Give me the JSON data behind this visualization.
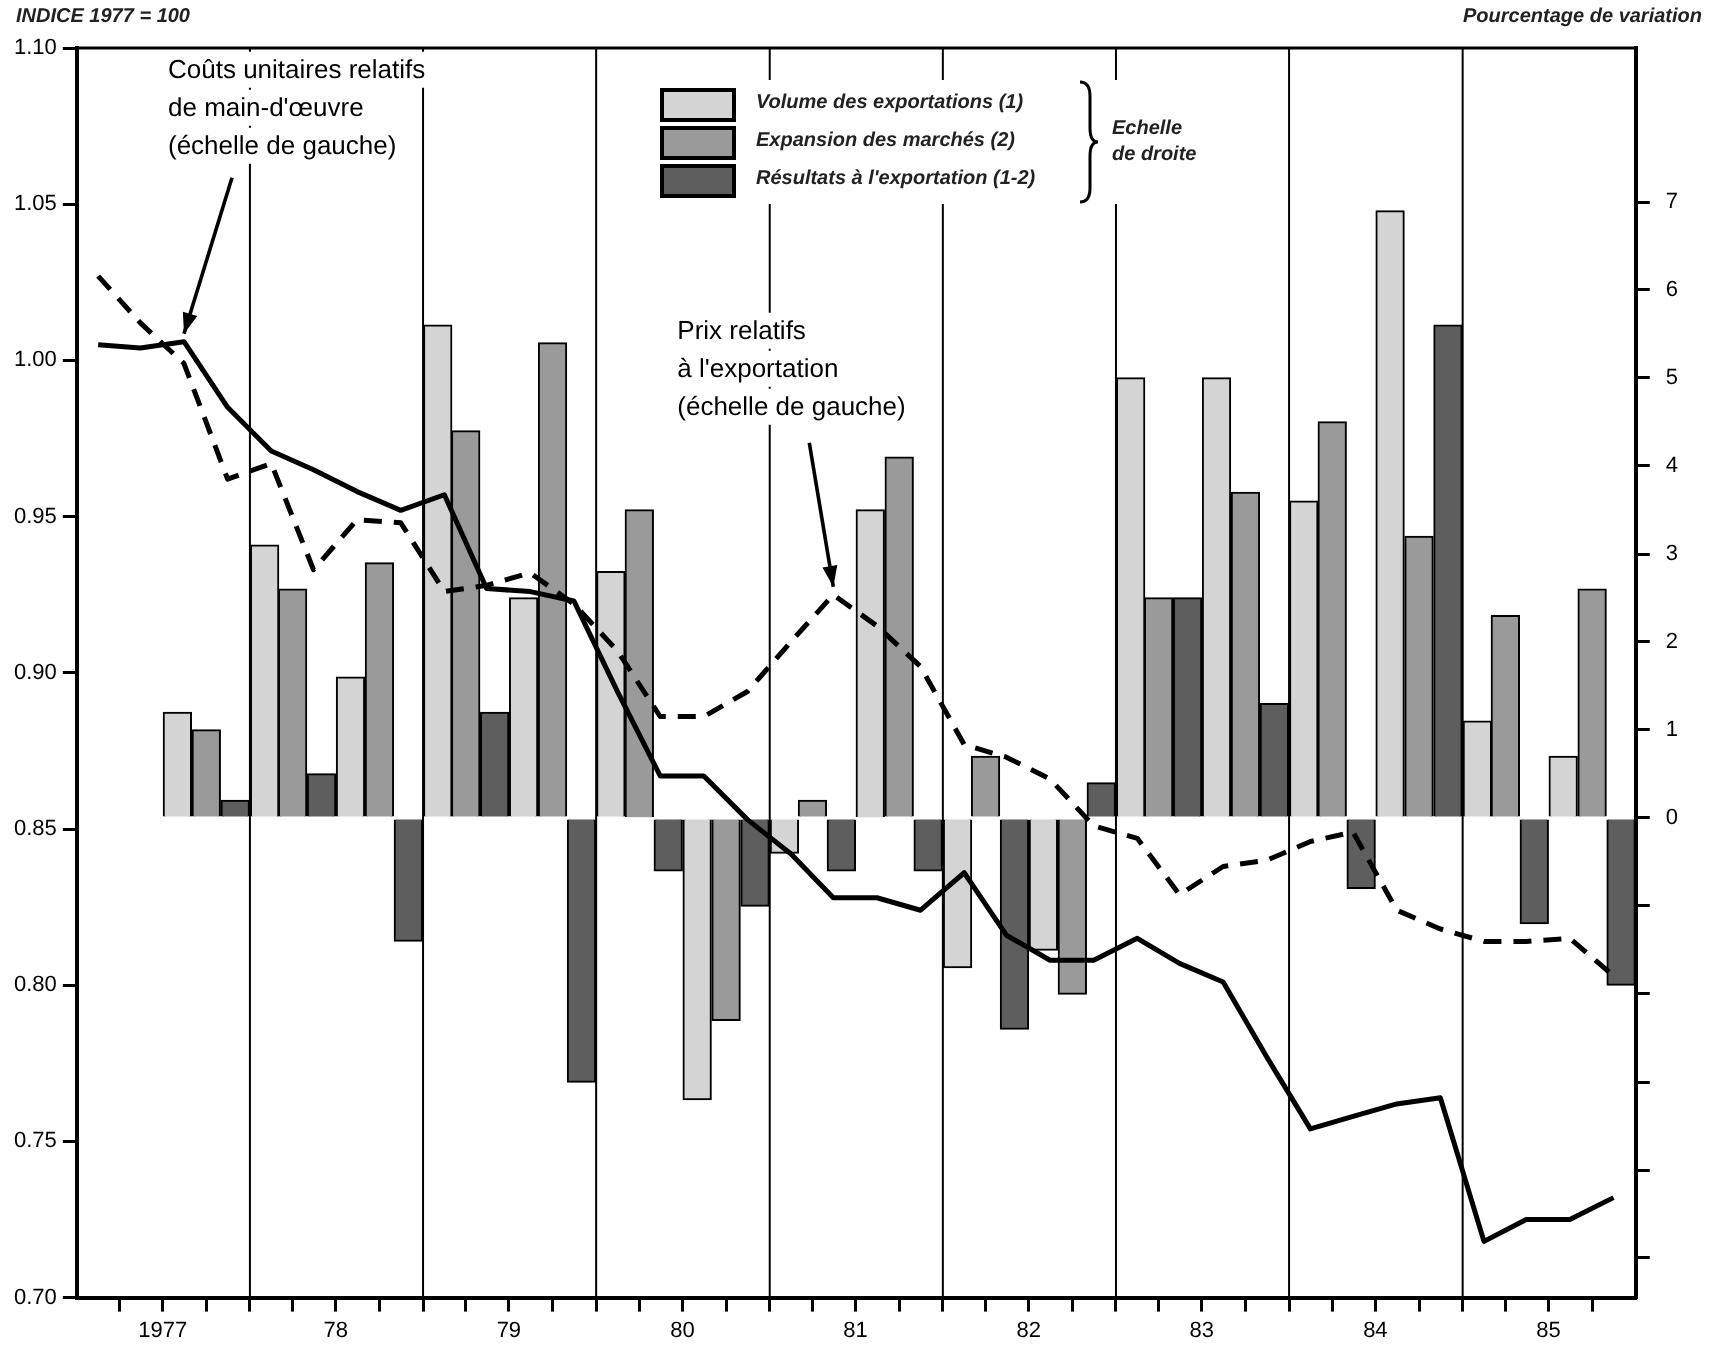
{
  "chart_data": {
    "type": "bar",
    "ylabel": "INDICE 1977 = 100",
    "y2label": "Pourcentage de variation",
    "xlim": [
      "1977-01-01",
      "1986-01-01"
    ],
    "xticks": [
      {
        "value": "1977-04-01",
        "label": null
      },
      {
        "value": "1977-07-01",
        "label": "1977"
      },
      {
        "value": "1977-10-01",
        "label": null
      },
      {
        "value": "1978-01-01",
        "label": null
      },
      {
        "value": "1978-04-01",
        "label": null
      },
      {
        "value": "1978-07-01",
        "label": "78"
      },
      {
        "value": "1978-10-01",
        "label": null
      },
      {
        "value": "1979-01-01",
        "label": null
      },
      {
        "value": "1979-04-01",
        "label": null
      },
      {
        "value": "1979-07-01",
        "label": "79"
      },
      {
        "value": "1979-10-01",
        "label": null
      },
      {
        "value": "1980-01-01",
        "label": null
      },
      {
        "value": "1980-04-01",
        "label": null
      },
      {
        "value": "1980-07-01",
        "label": "80"
      },
      {
        "value": "1980-10-01",
        "label": null
      },
      {
        "value": "1981-01-01",
        "label": null
      },
      {
        "value": "1981-04-01",
        "label": null
      },
      {
        "value": "1981-07-01",
        "label": "81"
      },
      {
        "value": "1981-10-01",
        "label": null
      },
      {
        "value": "1982-01-01",
        "label": null
      },
      {
        "value": "1982-04-01",
        "label": null
      },
      {
        "value": "1982-07-01",
        "label": "82"
      },
      {
        "value": "1982-10-01",
        "label": null
      },
      {
        "value": "1983-01-01",
        "label": null
      },
      {
        "value": "1983-04-01",
        "label": null
      },
      {
        "value": "1983-07-01",
        "label": "83"
      },
      {
        "value": "1983-10-01",
        "label": null
      },
      {
        "value": "1984-01-01",
        "label": null
      },
      {
        "value": "1984-04-01",
        "label": null
      },
      {
        "value": "1984-07-01",
        "label": "84"
      },
      {
        "value": "1984-10-01",
        "label": null
      },
      {
        "value": "1985-01-01",
        "label": null
      },
      {
        "value": "1985-04-01",
        "label": null
      },
      {
        "value": "1985-07-01",
        "label": "85"
      },
      {
        "value": "1985-10-01",
        "label": null
      }
    ],
    "ylim": [
      0.7,
      1.1
    ],
    "yticks": [
      {
        "value": 0.7,
        "label": "0.70"
      },
      0.75,
      {
        "value": 0.8,
        "label": "0.80"
      },
      0.85,
      {
        "value": 0.9,
        "label": "0.90"
      },
      0.95,
      {
        "value": 1.0,
        "label": "1.00"
      },
      1.05,
      {
        "value": 1.1,
        "label": "1.10"
      }
    ],
    "y2lim": [
      -5.45,
      8.75
    ],
    "y2ticks": [
      {
        "value": -5,
        "label": null
      },
      {
        "value": -4,
        "label": null
      },
      {
        "value": -3,
        "label": null
      },
      {
        "value": -2,
        "label": null
      },
      {
        "value": -1,
        "label": null
      },
      0,
      1,
      2,
      3,
      4,
      5,
      6,
      7
    ],
    "legend": "top",
    "series": [
      {
        "name": "Volume des exportations (1)",
        "axis": "y2",
        "color": "#d4d4d4",
        "x": [
          "1977-08-01",
          "1978-02-01",
          "1978-08-01",
          "1979-02-01",
          "1979-08-01",
          "1980-02-01",
          "1980-08-01",
          "1981-02-01",
          "1981-08-01",
          "1982-02-01",
          "1982-08-01",
          "1983-02-01",
          "1983-08-01",
          "1984-02-01",
          "1984-08-01",
          "1985-02-01",
          "1985-08-01"
        ],
        "values": [
          1.2,
          3.1,
          1.6,
          5.6,
          2.5,
          2.8,
          -3.2,
          -0.4,
          3.5,
          -1.7,
          -1.5,
          5.0,
          5.0,
          3.6,
          6.9,
          1.1,
          0.7
        ]
      },
      {
        "name": "Expansion des marchés (2)",
        "axis": "y2",
        "color": "#9a9a9a",
        "x": [
          "1977-10-01",
          "1978-04-01",
          "1978-10-01",
          "1979-04-01",
          "1979-10-01",
          "1980-04-01",
          "1980-10-01",
          "1981-04-01",
          "1981-10-01",
          "1982-04-01",
          "1982-10-01",
          "1983-04-01",
          "1983-10-01",
          "1984-04-01",
          "1984-10-01",
          "1985-04-01",
          "1985-10-01"
        ],
        "values": [
          1.0,
          2.6,
          2.9,
          4.4,
          5.4,
          3.5,
          -2.3,
          0.2,
          4.1,
          0.7,
          -2.0,
          2.5,
          3.7,
          4.5,
          3.2,
          2.3,
          2.6
        ]
      },
      {
        "name": "Résultats à l'exportation (1-2)",
        "axis": "y2",
        "color": "#5e5e5e",
        "x": [
          "1977-12-01",
          "1978-06-01",
          "1978-12-01",
          "1979-06-01",
          "1979-12-01",
          "1980-06-01",
          "1980-12-01",
          "1981-06-01",
          "1981-12-01",
          "1982-06-01",
          "1982-12-01",
          "1983-06-01",
          "1983-12-01",
          "1984-06-01",
          "1984-12-01",
          "1985-06-01",
          "1985-12-01"
        ],
        "values": [
          0.2,
          0.5,
          -1.4,
          1.2,
          -3.0,
          -0.6,
          -1.0,
          -0.6,
          -0.6,
          -2.4,
          0.4,
          2.5,
          1.3,
          -0.8,
          5.6,
          -1.2,
          -1.9
        ]
      },
      {
        "type": "line",
        "color": "#000000",
        "line_style": "solid",
        "x": [
          "1977-02-15",
          "1977-05-15",
          "1977-08-15",
          "1977-11-15",
          "1978-02-15",
          "1978-05-15",
          "1978-08-15",
          "1978-11-15",
          "1979-02-15",
          "1979-05-15",
          "1979-08-15",
          "1979-11-15",
          "1980-02-15",
          "1980-05-15",
          "1980-08-15",
          "1980-11-15",
          "1981-02-15",
          "1981-05-15",
          "1981-08-15",
          "1981-11-15",
          "1982-02-15",
          "1982-05-15",
          "1982-08-15",
          "1982-11-15",
          "1983-02-15",
          "1983-05-15",
          "1983-08-15",
          "1983-11-15",
          "1984-02-15",
          "1984-05-15",
          "1984-08-15",
          "1984-11-15",
          "1985-02-15",
          "1985-05-15",
          "1985-08-15",
          "1985-11-15"
        ],
        "values": [
          1.005,
          1.004,
          1.006,
          0.985,
          0.971,
          0.965,
          0.958,
          0.952,
          0.957,
          0.927,
          0.926,
          0.923,
          0.894,
          0.867,
          0.867,
          0.853,
          0.842,
          0.828,
          0.828,
          0.824,
          0.836,
          0.816,
          0.808,
          0.808,
          0.815,
          0.807,
          0.801,
          0.777,
          0.754,
          0.758,
          0.762,
          0.764,
          0.718,
          0.725,
          0.725,
          0.732
        ]
      },
      {
        "type": "line",
        "color": "#000000",
        "line_style": "dashed",
        "x": [
          "1977-02-15",
          "1977-05-15",
          "1977-08-15",
          "1977-11-15",
          "1978-02-15",
          "1978-05-15",
          "1978-08-15",
          "1978-11-15",
          "1979-02-15",
          "1979-05-15",
          "1979-08-15",
          "1979-11-15",
          "1980-02-15",
          "1980-05-15",
          "1980-08-15",
          "1980-11-15",
          "1981-02-15",
          "1981-05-15",
          "1981-08-15",
          "1981-11-15",
          "1982-02-15",
          "1982-05-15",
          "1982-08-15",
          "1982-11-15",
          "1983-02-15",
          "1983-05-15",
          "1983-08-15",
          "1983-11-15",
          "1984-02-15",
          "1984-05-15",
          "1984-08-15",
          "1984-11-15",
          "1985-02-15",
          "1985-05-15",
          "1985-08-15",
          "1985-11-15"
        ],
        "values": [
          1.027,
          1.012,
          0.999,
          0.962,
          0.967,
          0.933,
          0.949,
          0.948,
          0.926,
          0.928,
          0.932,
          0.922,
          0.907,
          0.886,
          0.886,
          0.894,
          0.91,
          0.925,
          0.915,
          0.902,
          0.877,
          0.873,
          0.866,
          0.851,
          0.847,
          0.829,
          0.838,
          0.84,
          0.846,
          0.849,
          0.824,
          0.818,
          0.814,
          0.814,
          0.815,
          0.803
        ]
      }
    ],
    "ref_lines": [
      {
        "axis": "x",
        "value": "1978-01-01"
      },
      {
        "axis": "x",
        "value": "1979-01-01"
      },
      {
        "axis": "x",
        "value": "1980-01-01"
      },
      {
        "axis": "x",
        "value": "1981-01-01"
      },
      {
        "axis": "x",
        "value": "1982-01-01"
      },
      {
        "axis": "x",
        "value": "1983-01-01"
      },
      {
        "axis": "x",
        "value": "1984-01-01"
      },
      {
        "axis": "x",
        "value": "1985-01-01"
      }
    ],
    "annotations": [
      {
        "text": "Coûts unitaires relatifs\nde main-d'œuvre\n(échelle de gauche)",
        "x": "1977-08-15",
        "y": 1.006
      },
      {
        "text": "Prix relatifs\nà l'exportation\n(échelle de gauche)",
        "x": "1981-05-15",
        "y": 0.925
      },
      "Echelle\nde droite"
    ]
  }
}
